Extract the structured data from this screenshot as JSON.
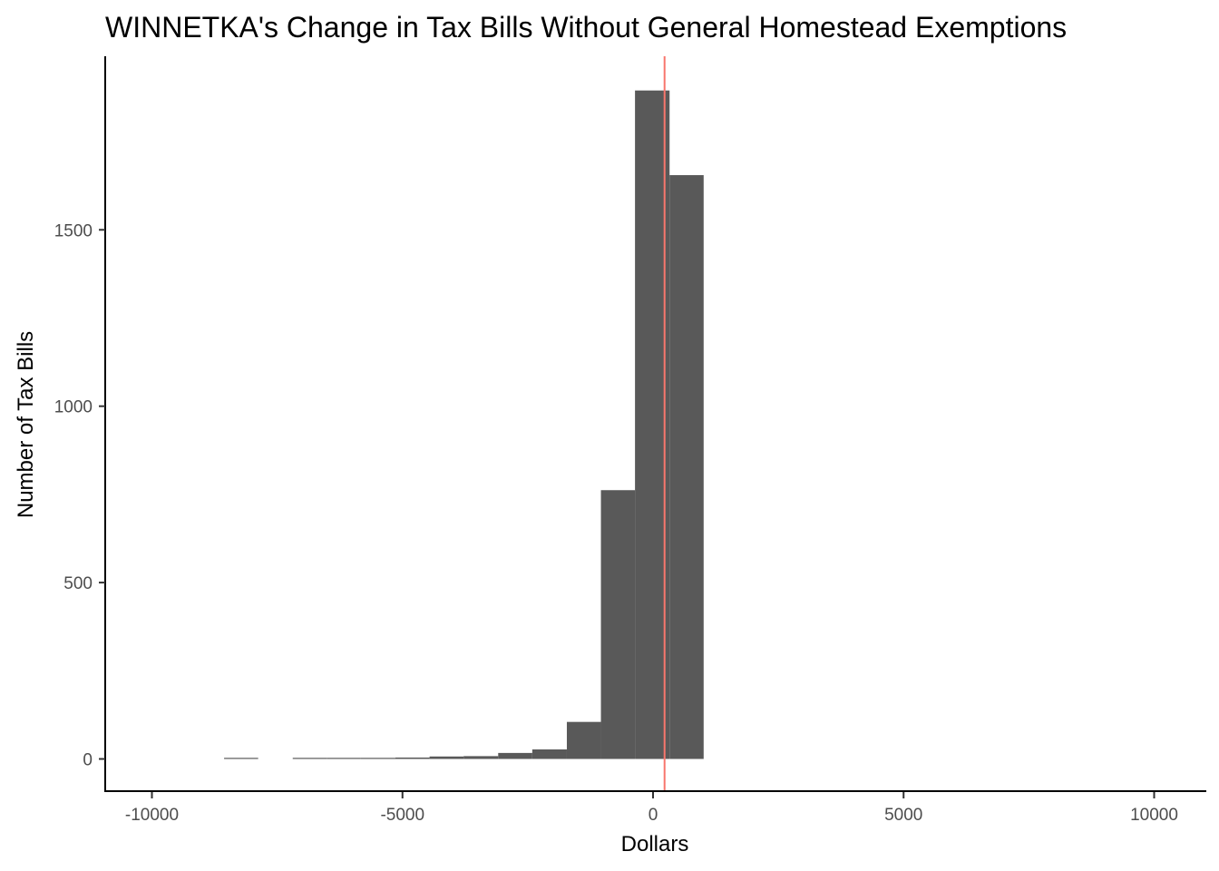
{
  "chart_data": {
    "type": "bar",
    "title": "WINNETKA's Change in Tax Bills Without General Homestead Exemptions",
    "xlabel": "Dollars",
    "ylabel": "Number of Tax Bills",
    "xlim": [
      -10000,
      10000
    ],
    "ylim": [
      0,
      1900
    ],
    "x_ticks": [
      -10000,
      -5000,
      0,
      5000,
      10000
    ],
    "y_ticks": [
      0,
      500,
      1000,
      1500
    ],
    "grid": false,
    "bins": [
      {
        "x0": -8560,
        "x1": -7880,
        "count": 2
      },
      {
        "x0": -7190,
        "x1": -6510,
        "count": 1
      },
      {
        "x0": -6510,
        "x1": -5830,
        "count": 2
      },
      {
        "x0": -5830,
        "x1": -5140,
        "count": 2
      },
      {
        "x0": -5140,
        "x1": -4460,
        "count": 4
      },
      {
        "x0": -4460,
        "x1": -3780,
        "count": 7
      },
      {
        "x0": -3780,
        "x1": -3090,
        "count": 8
      },
      {
        "x0": -3090,
        "x1": -2410,
        "count": 17
      },
      {
        "x0": -2410,
        "x1": -1720,
        "count": 27
      },
      {
        "x0": -1720,
        "x1": -1040,
        "count": 105
      },
      {
        "x0": -1040,
        "x1": -360,
        "count": 762
      },
      {
        "x0": -360,
        "x1": 330,
        "count": 1895
      },
      {
        "x0": 330,
        "x1": 1010,
        "count": 1655
      }
    ],
    "bar_color": "#595959",
    "reference_line": {
      "x": 230,
      "color": "#f8766d"
    }
  }
}
